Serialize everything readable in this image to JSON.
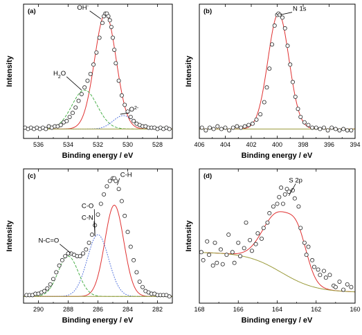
{
  "chart_data": [
    {
      "type": "scatter",
      "panel_label": "(a)",
      "xlabel": "Binding energy / eV",
      "ylabel": "Intensity",
      "xlim": [
        537,
        527
      ],
      "ylim": [
        0,
        1
      ],
      "xticks": [
        536,
        534,
        532,
        530,
        528
      ],
      "baseline": 0.07,
      "points_style": "open-circle",
      "points": [
        [
          536.9,
          0.08
        ],
        [
          536.7,
          0.07
        ],
        [
          536.5,
          0.08
        ],
        [
          536.3,
          0.07
        ],
        [
          536.1,
          0.08
        ],
        [
          535.9,
          0.07
        ],
        [
          535.7,
          0.08
        ],
        [
          535.5,
          0.07
        ],
        [
          535.3,
          0.09
        ],
        [
          535.1,
          0.08
        ],
        [
          534.9,
          0.09
        ],
        [
          534.7,
          0.09
        ],
        [
          534.5,
          0.1
        ],
        [
          534.3,
          0.12
        ],
        [
          534.1,
          0.13
        ],
        [
          533.9,
          0.16
        ],
        [
          533.7,
          0.19
        ],
        [
          533.5,
          0.23
        ],
        [
          533.3,
          0.28
        ],
        [
          533.1,
          0.33
        ],
        [
          532.9,
          0.38
        ],
        [
          532.7,
          0.43
        ],
        [
          532.5,
          0.48
        ],
        [
          532.3,
          0.55
        ],
        [
          532.1,
          0.64
        ],
        [
          531.9,
          0.75
        ],
        [
          531.7,
          0.86
        ],
        [
          531.6,
          0.91
        ],
        [
          531.5,
          0.93
        ],
        [
          531.4,
          0.93
        ],
        [
          531.3,
          0.91
        ],
        [
          531.2,
          0.88
        ],
        [
          531.1,
          0.83
        ],
        [
          531.0,
          0.75
        ],
        [
          530.9,
          0.66
        ],
        [
          530.8,
          0.56
        ],
        [
          530.6,
          0.43
        ],
        [
          530.4,
          0.32
        ],
        [
          530.2,
          0.25
        ],
        [
          530.0,
          0.2
        ],
        [
          529.8,
          0.16
        ],
        [
          529.6,
          0.13
        ],
        [
          529.4,
          0.11
        ],
        [
          529.2,
          0.1
        ],
        [
          529.0,
          0.09
        ],
        [
          528.8,
          0.09
        ],
        [
          528.6,
          0.08
        ],
        [
          528.4,
          0.08
        ],
        [
          528.2,
          0.08
        ],
        [
          528.0,
          0.07
        ],
        [
          527.8,
          0.08
        ],
        [
          527.6,
          0.07
        ],
        [
          527.4,
          0.08
        ],
        [
          527.2,
          0.07
        ]
      ],
      "series": [
        {
          "name": "OH-",
          "style": "solid",
          "color": "#e03030",
          "kind": "gauss",
          "center": 531.5,
          "amp": 0.86,
          "fwhm": 1.7
        },
        {
          "name": "H2O",
          "style": "dashed",
          "color": "#3aa83a",
          "kind": "gauss",
          "center": 532.9,
          "amp": 0.29,
          "fwhm": 2.0
        },
        {
          "name": "O2-",
          "style": "dotted",
          "color": "#3a5fd8",
          "kind": "gauss",
          "center": 530.3,
          "amp": 0.1,
          "fwhm": 1.6
        },
        {
          "name": "background",
          "style": "solid",
          "color": "#9a9a3a",
          "kind": "flat"
        }
      ],
      "labels": [
        {
          "text": "OH",
          "sup": "-",
          "at": [
            531.8,
            0.89
          ],
          "tx": [
            533.4,
            0.96
          ]
        },
        {
          "text": "H",
          "sub": "2",
          "rest": "O",
          "at": [
            533.1,
            0.36
          ],
          "tx": [
            535.0,
            0.47
          ]
        },
        {
          "text": "O",
          "sup": "2-",
          "at": [
            530.5,
            0.18
          ],
          "tx": [
            529.9,
            0.2
          ]
        }
      ]
    },
    {
      "type": "scatter",
      "panel_label": "(b)",
      "xlabel": "Binding energy / eV",
      "ylabel": "Intensity",
      "xlim": [
        406,
        394
      ],
      "ylim": [
        0,
        1
      ],
      "xticks": [
        406,
        404,
        402,
        400,
        398,
        396,
        394
      ],
      "baseline": 0.07,
      "points_style": "open-circle",
      "points": [
        [
          405.8,
          0.08
        ],
        [
          405.5,
          0.06
        ],
        [
          405.2,
          0.08
        ],
        [
          404.9,
          0.07
        ],
        [
          404.6,
          0.09
        ],
        [
          404.3,
          0.07
        ],
        [
          404.0,
          0.08
        ],
        [
          403.7,
          0.06
        ],
        [
          403.4,
          0.08
        ],
        [
          403.1,
          0.09
        ],
        [
          402.8,
          0.08
        ],
        [
          402.5,
          0.09
        ],
        [
          402.2,
          0.1
        ],
        [
          401.9,
          0.11
        ],
        [
          401.6,
          0.14
        ],
        [
          401.3,
          0.18
        ],
        [
          401.0,
          0.27
        ],
        [
          400.8,
          0.38
        ],
        [
          400.6,
          0.52
        ],
        [
          400.4,
          0.7
        ],
        [
          400.2,
          0.84
        ],
        [
          400.0,
          0.92
        ],
        [
          399.9,
          0.93
        ],
        [
          399.8,
          0.92
        ],
        [
          399.6,
          0.9
        ],
        [
          399.4,
          0.82
        ],
        [
          399.2,
          0.69
        ],
        [
          399.0,
          0.55
        ],
        [
          398.8,
          0.42
        ],
        [
          398.6,
          0.31
        ],
        [
          398.4,
          0.22
        ],
        [
          398.2,
          0.16
        ],
        [
          397.9,
          0.12
        ],
        [
          397.6,
          0.1
        ],
        [
          397.3,
          0.08
        ],
        [
          397.0,
          0.08
        ],
        [
          396.7,
          0.07
        ],
        [
          396.4,
          0.08
        ],
        [
          396.1,
          0.06
        ],
        [
          395.8,
          0.08
        ],
        [
          395.5,
          0.07
        ],
        [
          395.2,
          0.06
        ],
        [
          394.9,
          0.07
        ],
        [
          394.6,
          0.06
        ],
        [
          394.3,
          0.06
        ]
      ],
      "series": [
        {
          "name": "N 1s",
          "style": "solid",
          "color": "#e03030",
          "kind": "gauss",
          "center": 399.9,
          "amp": 0.86,
          "fwhm": 1.9
        },
        {
          "name": "background",
          "style": "solid",
          "color": "#9a9a3a",
          "kind": "flat"
        }
      ],
      "labels": [
        {
          "text": "N 1s",
          "at": [
            399.8,
            0.92
          ],
          "tx": [
            398.8,
            0.95
          ]
        }
      ]
    },
    {
      "type": "scatter",
      "panel_label": "(c)",
      "xlabel": "Binding energy / eV",
      "ylabel": "Intensity",
      "xlim": [
        291,
        281
      ],
      "ylim": [
        0,
        1
      ],
      "xticks": [
        290,
        288,
        286,
        284,
        282
      ],
      "baseline": 0.05,
      "points_style": "open-circle",
      "points": [
        [
          290.8,
          0.06
        ],
        [
          290.6,
          0.06
        ],
        [
          290.4,
          0.06
        ],
        [
          290.2,
          0.07
        ],
        [
          290.0,
          0.07
        ],
        [
          289.8,
          0.08
        ],
        [
          289.6,
          0.09
        ],
        [
          289.4,
          0.11
        ],
        [
          289.2,
          0.14
        ],
        [
          289.0,
          0.18
        ],
        [
          288.8,
          0.23
        ],
        [
          288.6,
          0.28
        ],
        [
          288.4,
          0.32
        ],
        [
          288.2,
          0.35
        ],
        [
          288.0,
          0.37
        ],
        [
          287.8,
          0.37
        ],
        [
          287.6,
          0.36
        ],
        [
          287.4,
          0.35
        ],
        [
          287.2,
          0.35
        ],
        [
          287.0,
          0.37
        ],
        [
          286.8,
          0.4
        ],
        [
          286.6,
          0.45
        ],
        [
          286.4,
          0.51
        ],
        [
          286.2,
          0.58
        ],
        [
          286.0,
          0.66
        ],
        [
          285.8,
          0.74
        ],
        [
          285.6,
          0.81
        ],
        [
          285.4,
          0.87
        ],
        [
          285.2,
          0.91
        ],
        [
          285.0,
          0.93
        ],
        [
          284.9,
          0.93
        ],
        [
          284.8,
          0.91
        ],
        [
          284.6,
          0.85
        ],
        [
          284.4,
          0.76
        ],
        [
          284.2,
          0.65
        ],
        [
          284.0,
          0.53
        ],
        [
          283.8,
          0.42
        ],
        [
          283.6,
          0.32
        ],
        [
          283.4,
          0.23
        ],
        [
          283.2,
          0.16
        ],
        [
          283.0,
          0.12
        ],
        [
          282.8,
          0.09
        ],
        [
          282.6,
          0.08
        ],
        [
          282.4,
          0.07
        ],
        [
          282.2,
          0.07
        ],
        [
          282.0,
          0.06
        ],
        [
          281.8,
          0.06
        ],
        [
          281.6,
          0.06
        ],
        [
          281.4,
          0.06
        ],
        [
          281.2,
          0.05
        ]
      ],
      "series": [
        {
          "name": "C-H",
          "style": "solid",
          "color": "#e03030",
          "kind": "gauss",
          "center": 284.9,
          "amp": 0.68,
          "fwhm": 1.5
        },
        {
          "name": "C-O / C-N",
          "style": "dotted",
          "color": "#3a5fd8",
          "kind": "gauss",
          "center": 286.0,
          "amp": 0.46,
          "fwhm": 1.7
        },
        {
          "name": "N-C=O",
          "style": "dashed",
          "color": "#3aa83a",
          "kind": "gauss",
          "center": 288.0,
          "amp": 0.3,
          "fwhm": 1.6
        },
        {
          "name": "background",
          "style": "solid",
          "color": "#9a9a3a",
          "kind": "flat"
        }
      ],
      "labels": [
        {
          "text": "C-H",
          "at": [
            284.7,
            0.88
          ],
          "tx": [
            284.5,
            0.94
          ]
        },
        {
          "text": "C-O",
          "at": [
            286.2,
            0.5
          ],
          "tx": [
            287.1,
            0.71
          ]
        },
        {
          "text": "C-N",
          "at": [
            286.2,
            0.5
          ],
          "tx": [
            287.1,
            0.62
          ]
        },
        {
          "text": "N-C=O",
          "at": [
            287.8,
            0.37
          ],
          "tx": [
            290.0,
            0.45
          ]
        }
      ]
    },
    {
      "type": "scatter",
      "panel_label": "(d)",
      "xlabel": "Binding energy / eV",
      "ylabel": "Intensity",
      "xlim": [
        168,
        160
      ],
      "ylim": [
        0,
        1
      ],
      "xticks": [
        168,
        166,
        164,
        162,
        160
      ],
      "points_style": "open-circle",
      "points": [
        [
          167.9,
          0.38
        ],
        [
          167.8,
          0.32
        ],
        [
          167.6,
          0.46
        ],
        [
          167.5,
          0.36
        ],
        [
          167.3,
          0.28
        ],
        [
          167.2,
          0.45
        ],
        [
          167.1,
          0.3
        ],
        [
          166.9,
          0.4
        ],
        [
          166.8,
          0.29
        ],
        [
          166.6,
          0.36
        ],
        [
          166.5,
          0.51
        ],
        [
          166.3,
          0.38
        ],
        [
          166.2,
          0.3
        ],
        [
          166.0,
          0.45
        ],
        [
          165.9,
          0.35
        ],
        [
          165.7,
          0.41
        ],
        [
          165.6,
          0.6
        ],
        [
          165.4,
          0.47
        ],
        [
          165.3,
          0.39
        ],
        [
          165.1,
          0.44
        ],
        [
          165.0,
          0.52
        ],
        [
          164.8,
          0.48
        ],
        [
          164.7,
          0.56
        ],
        [
          164.5,
          0.6
        ],
        [
          164.4,
          0.67
        ],
        [
          164.2,
          0.72
        ],
        [
          164.0,
          0.74
        ],
        [
          163.9,
          0.79
        ],
        [
          163.8,
          0.86
        ],
        [
          163.7,
          0.74
        ],
        [
          163.6,
          0.81
        ],
        [
          163.5,
          0.85
        ],
        [
          163.4,
          0.83
        ],
        [
          163.2,
          0.84
        ],
        [
          163.1,
          0.78
        ],
        [
          162.9,
          0.72
        ],
        [
          162.8,
          0.56
        ],
        [
          162.6,
          0.45
        ],
        [
          162.5,
          0.36
        ],
        [
          162.4,
          0.42
        ],
        [
          162.2,
          0.32
        ],
        [
          162.1,
          0.27
        ],
        [
          161.9,
          0.25
        ],
        [
          161.8,
          0.21
        ],
        [
          161.6,
          0.24
        ],
        [
          161.5,
          0.19
        ],
        [
          161.3,
          0.21
        ],
        [
          161.1,
          0.13
        ],
        [
          161.0,
          0.12
        ],
        [
          160.8,
          0.16
        ],
        [
          160.6,
          0.1
        ],
        [
          160.4,
          0.14
        ],
        [
          160.2,
          0.12
        ]
      ],
      "series": [
        {
          "name": "S 2p",
          "style": "solid",
          "color": "#e03030",
          "kind": "fit_d"
        },
        {
          "name": "background",
          "style": "solid",
          "color": "#9a9a3a",
          "kind": "sigmoid_d"
        }
      ],
      "labels": [
        {
          "text": "S 2p",
          "at": [
            163.4,
            0.8
          ],
          "tx": [
            163.4,
            0.9
          ]
        }
      ]
    }
  ]
}
